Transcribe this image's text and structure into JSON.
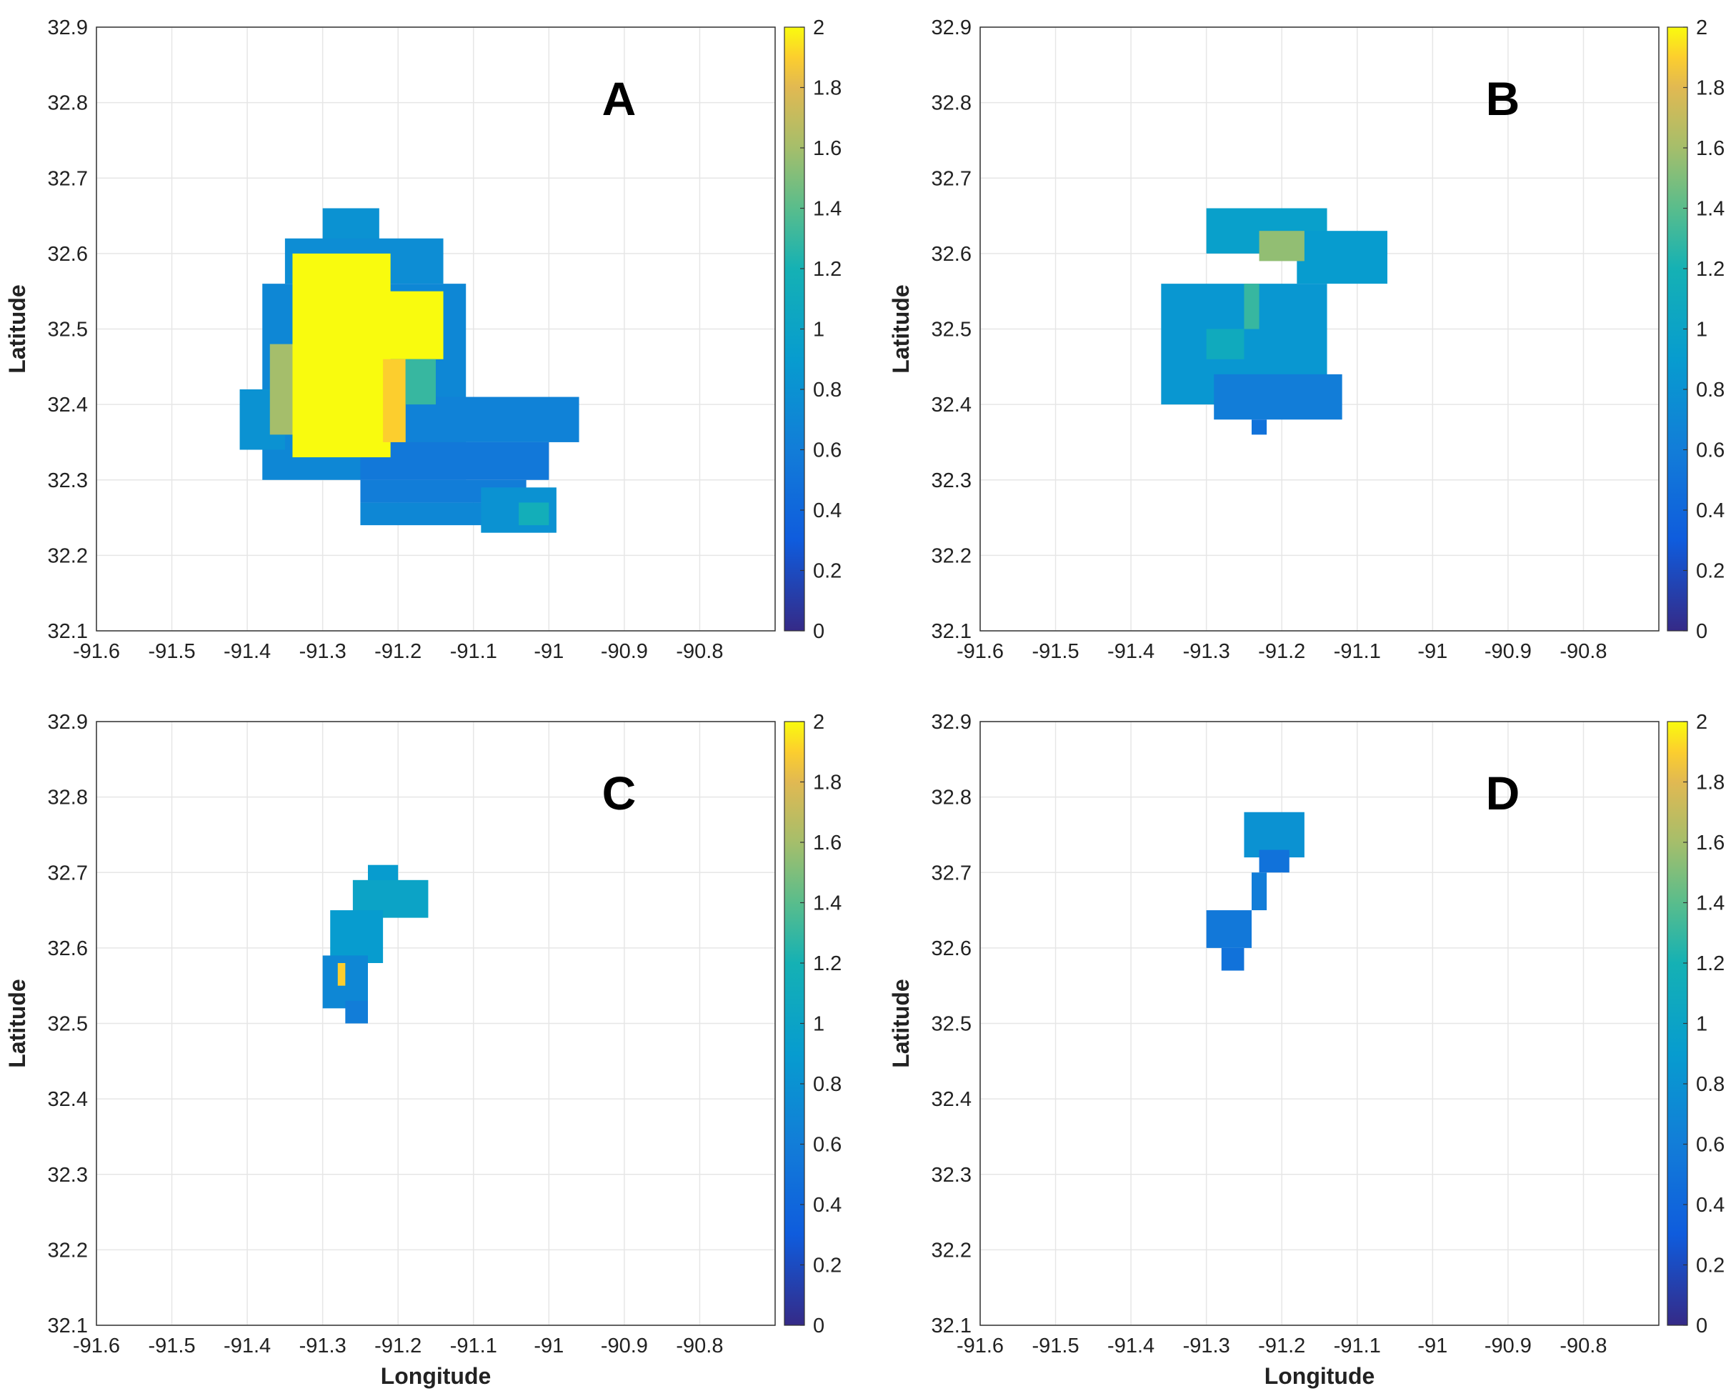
{
  "chart_data": [
    {
      "type": "heatmap",
      "panel": "A",
      "title": "A",
      "xlabel": "",
      "ylabel": "Latitude",
      "xlim": [
        -91.6,
        -90.7
      ],
      "ylim": [
        32.1,
        32.9
      ],
      "x_ticks": [
        "-91.6",
        "-91.5",
        "-91.4",
        "-91.3",
        "-91.2",
        "-91.1",
        "-91",
        "-90.9",
        "-90.8"
      ],
      "y_ticks": [
        "32.1",
        "32.2",
        "32.3",
        "32.4",
        "32.5",
        "32.6",
        "32.7",
        "32.8",
        "32.9"
      ],
      "colorbar": {
        "min": 0,
        "max": 2,
        "ticks": [
          "0",
          "0.2",
          "0.4",
          "0.6",
          "0.8",
          "1",
          "1.2",
          "1.4",
          "1.6",
          "1.8",
          "2"
        ]
      },
      "grid": true,
      "regions": [
        {
          "lon": [
            -91.3,
            -91.225
          ],
          "lat": [
            32.6,
            32.66
          ],
          "value": 0.8
        },
        {
          "lon": [
            -91.35,
            -91.14
          ],
          "lat": [
            32.56,
            32.62
          ],
          "value": 0.75
        },
        {
          "lon": [
            -91.38,
            -91.11
          ],
          "lat": [
            32.3,
            32.56
          ],
          "value": 0.7
        },
        {
          "lon": [
            -91.41,
            -91.35
          ],
          "lat": [
            32.34,
            32.42
          ],
          "value": 0.8
        },
        {
          "lon": [
            -91.25,
            -90.96
          ],
          "lat": [
            32.35,
            32.41
          ],
          "value": 0.65
        },
        {
          "lon": [
            -91.25,
            -91.0
          ],
          "lat": [
            32.3,
            32.35
          ],
          "value": 0.55
        },
        {
          "lon": [
            -91.25,
            -91.03
          ],
          "lat": [
            32.27,
            32.3
          ],
          "value": 0.6
        },
        {
          "lon": [
            -91.25,
            -91.03
          ],
          "lat": [
            32.24,
            32.27
          ],
          "value": 0.7
        },
        {
          "lon": [
            -91.09,
            -90.99
          ],
          "lat": [
            32.23,
            32.29
          ],
          "value": 0.8
        },
        {
          "lon": [
            -91.37,
            -91.24
          ],
          "lat": [
            32.36,
            32.48
          ],
          "value": 1.6
        },
        {
          "lon": [
            -91.34,
            -91.21
          ],
          "lat": [
            32.33,
            32.6
          ],
          "value": 2.0
        },
        {
          "lon": [
            -91.24,
            -91.14
          ],
          "lat": [
            32.46,
            32.55
          ],
          "value": 2.0
        },
        {
          "lon": [
            -91.22,
            -91.19
          ],
          "lat": [
            32.35,
            32.46
          ],
          "value": 1.9
        },
        {
          "lon": [
            -91.19,
            -91.15
          ],
          "lat": [
            32.4,
            32.46
          ],
          "value": 1.3
        },
        {
          "lon": [
            -91.04,
            -91.0
          ],
          "lat": [
            32.24,
            32.27
          ],
          "value": 1.15
        }
      ]
    },
    {
      "type": "heatmap",
      "panel": "B",
      "title": "B",
      "xlabel": "",
      "ylabel": "Latitude",
      "xlim": [
        -91.6,
        -90.7
      ],
      "ylim": [
        32.1,
        32.9
      ],
      "x_ticks": [
        "-91.6",
        "-91.5",
        "-91.4",
        "-91.3",
        "-91.2",
        "-91.1",
        "-91",
        "-90.9",
        "-90.8"
      ],
      "y_ticks": [
        "32.1",
        "32.2",
        "32.3",
        "32.4",
        "32.5",
        "32.6",
        "32.7",
        "32.8",
        "32.9"
      ],
      "colorbar": {
        "min": 0,
        "max": 2,
        "ticks": [
          "0",
          "0.2",
          "0.4",
          "0.6",
          "0.8",
          "1",
          "1.2",
          "1.4",
          "1.6",
          "1.8",
          "2"
        ]
      },
      "grid": true,
      "regions": [
        {
          "lon": [
            -91.3,
            -91.14
          ],
          "lat": [
            32.6,
            32.66
          ],
          "value": 0.95
        },
        {
          "lon": [
            -91.18,
            -91.06
          ],
          "lat": [
            32.56,
            32.63
          ],
          "value": 0.9
        },
        {
          "lon": [
            -91.36,
            -91.14
          ],
          "lat": [
            32.4,
            32.56
          ],
          "value": 0.85
        },
        {
          "lon": [
            -91.29,
            -91.12
          ],
          "lat": [
            32.38,
            32.44
          ],
          "value": 0.6
        },
        {
          "lon": [
            -91.24,
            -91.22
          ],
          "lat": [
            32.36,
            32.38
          ],
          "value": 0.5
        },
        {
          "lon": [
            -91.23,
            -91.17
          ],
          "lat": [
            32.59,
            32.63
          ],
          "value": 1.55
        },
        {
          "lon": [
            -91.25,
            -91.23
          ],
          "lat": [
            32.5,
            32.56
          ],
          "value": 1.3
        },
        {
          "lon": [
            -91.3,
            -91.25
          ],
          "lat": [
            32.46,
            32.5
          ],
          "value": 1.1
        }
      ]
    },
    {
      "type": "heatmap",
      "panel": "C",
      "title": "C",
      "xlabel": "Longitude",
      "ylabel": "Latitude",
      "xlim": [
        -91.6,
        -90.7
      ],
      "ylim": [
        32.1,
        32.9
      ],
      "x_ticks": [
        "-91.6",
        "-91.5",
        "-91.4",
        "-91.3",
        "-91.2",
        "-91.1",
        "-91",
        "-90.9",
        "-90.8"
      ],
      "y_ticks": [
        "32.1",
        "32.2",
        "32.3",
        "32.4",
        "32.5",
        "32.6",
        "32.7",
        "32.8",
        "32.9"
      ],
      "colorbar": {
        "min": 0,
        "max": 2,
        "ticks": [
          "0",
          "0.2",
          "0.4",
          "0.6",
          "0.8",
          "1",
          "1.2",
          "1.4",
          "1.6",
          "1.8",
          "2"
        ]
      },
      "grid": true,
      "regions": [
        {
          "lon": [
            -91.24,
            -91.2
          ],
          "lat": [
            32.68,
            32.71
          ],
          "value": 0.9
        },
        {
          "lon": [
            -91.26,
            -91.16
          ],
          "lat": [
            32.64,
            32.69
          ],
          "value": 1.0
        },
        {
          "lon": [
            -91.29,
            -91.22
          ],
          "lat": [
            32.58,
            32.65
          ],
          "value": 0.9
        },
        {
          "lon": [
            -91.3,
            -91.24
          ],
          "lat": [
            32.52,
            32.59
          ],
          "value": 0.7
        },
        {
          "lon": [
            -91.27,
            -91.24
          ],
          "lat": [
            32.5,
            32.53
          ],
          "value": 0.6
        },
        {
          "lon": [
            -91.28,
            -91.27
          ],
          "lat": [
            32.55,
            32.58
          ],
          "value": 1.9
        }
      ]
    },
    {
      "type": "heatmap",
      "panel": "D",
      "title": "D",
      "xlabel": "Longitude",
      "ylabel": "Latitude",
      "xlim": [
        -91.6,
        -90.7
      ],
      "ylim": [
        32.1,
        32.9
      ],
      "x_ticks": [
        "-91.6",
        "-91.5",
        "-91.4",
        "-91.3",
        "-91.2",
        "-91.1",
        "-91",
        "-90.9",
        "-90.8"
      ],
      "y_ticks": [
        "32.1",
        "32.2",
        "32.3",
        "32.4",
        "32.5",
        "32.6",
        "32.7",
        "32.8",
        "32.9"
      ],
      "colorbar": {
        "min": 0,
        "max": 2,
        "ticks": [
          "0",
          "0.2",
          "0.4",
          "0.6",
          "0.8",
          "1",
          "1.2",
          "1.4",
          "1.6",
          "1.8",
          "2"
        ]
      },
      "grid": true,
      "regions": [
        {
          "lon": [
            -91.25,
            -91.17
          ],
          "lat": [
            32.72,
            32.78
          ],
          "value": 0.8
        },
        {
          "lon": [
            -91.23,
            -91.19
          ],
          "lat": [
            32.7,
            32.73
          ],
          "value": 0.5
        },
        {
          "lon": [
            -91.24,
            -91.22
          ],
          "lat": [
            32.65,
            32.7
          ],
          "value": 0.6
        },
        {
          "lon": [
            -91.3,
            -91.24
          ],
          "lat": [
            32.6,
            32.65
          ],
          "value": 0.55
        },
        {
          "lon": [
            -91.28,
            -91.25
          ],
          "lat": [
            32.57,
            32.6
          ],
          "value": 0.5
        }
      ]
    }
  ]
}
